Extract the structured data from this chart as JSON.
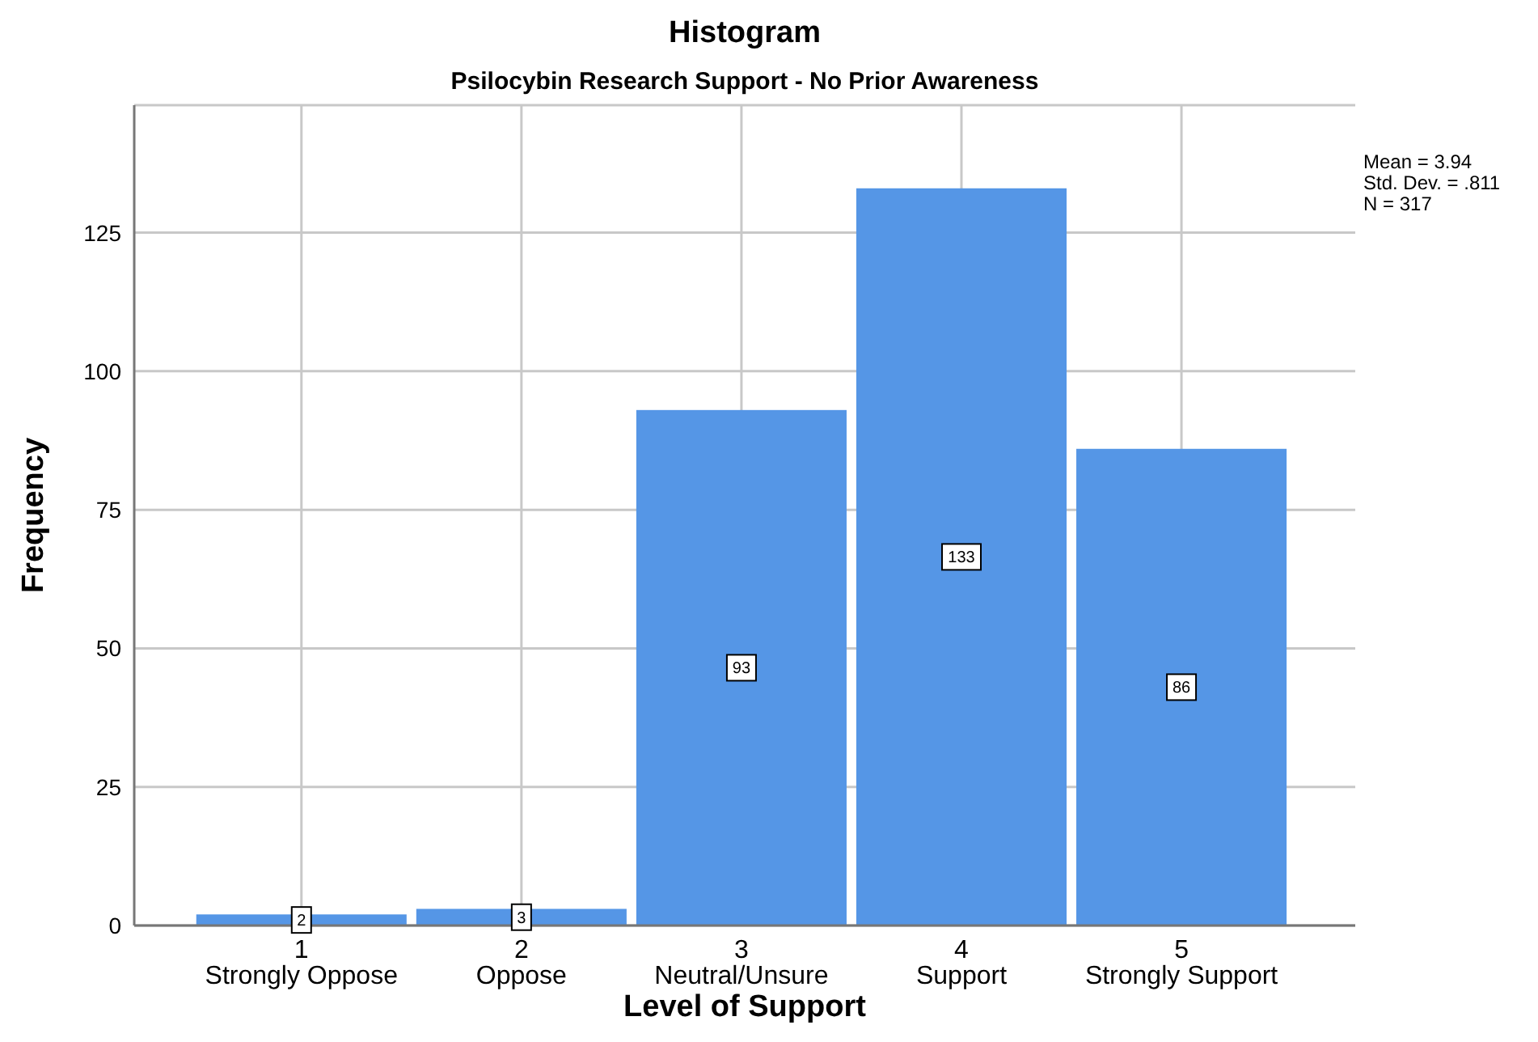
{
  "chart_data": {
    "type": "histogram",
    "title": "Histogram",
    "subtitle": "Psilocybin Research Support - No Prior Awareness",
    "xlabel": "Level of Support",
    "ylabel": "Frequency",
    "bins": [
      0.5,
      1.5,
      2.5,
      3.5,
      4.5,
      5.5
    ],
    "values": [
      2,
      3,
      93,
      133,
      86
    ],
    "color": "#5596e6",
    "xlim": [
      0.24,
      5.79
    ],
    "xticks": [
      {
        "value": 1,
        "label": "1\nStrongly Oppose"
      },
      {
        "value": 2,
        "label": "2\nOppose"
      },
      {
        "value": 3,
        "label": "3\nNeutral/Unsure"
      },
      {
        "value": 4,
        "label": "4\nSupport"
      },
      {
        "value": 5,
        "label": "5\nStrongly Support"
      }
    ],
    "ylim": [
      0,
      148
    ],
    "yticks": [
      0,
      25,
      50,
      75,
      100,
      125
    ],
    "grid": true,
    "data_labels": true,
    "annotations": [
      "Mean = 3.94",
      "Std. Dev. = .811",
      "N = 317"
    ]
  }
}
